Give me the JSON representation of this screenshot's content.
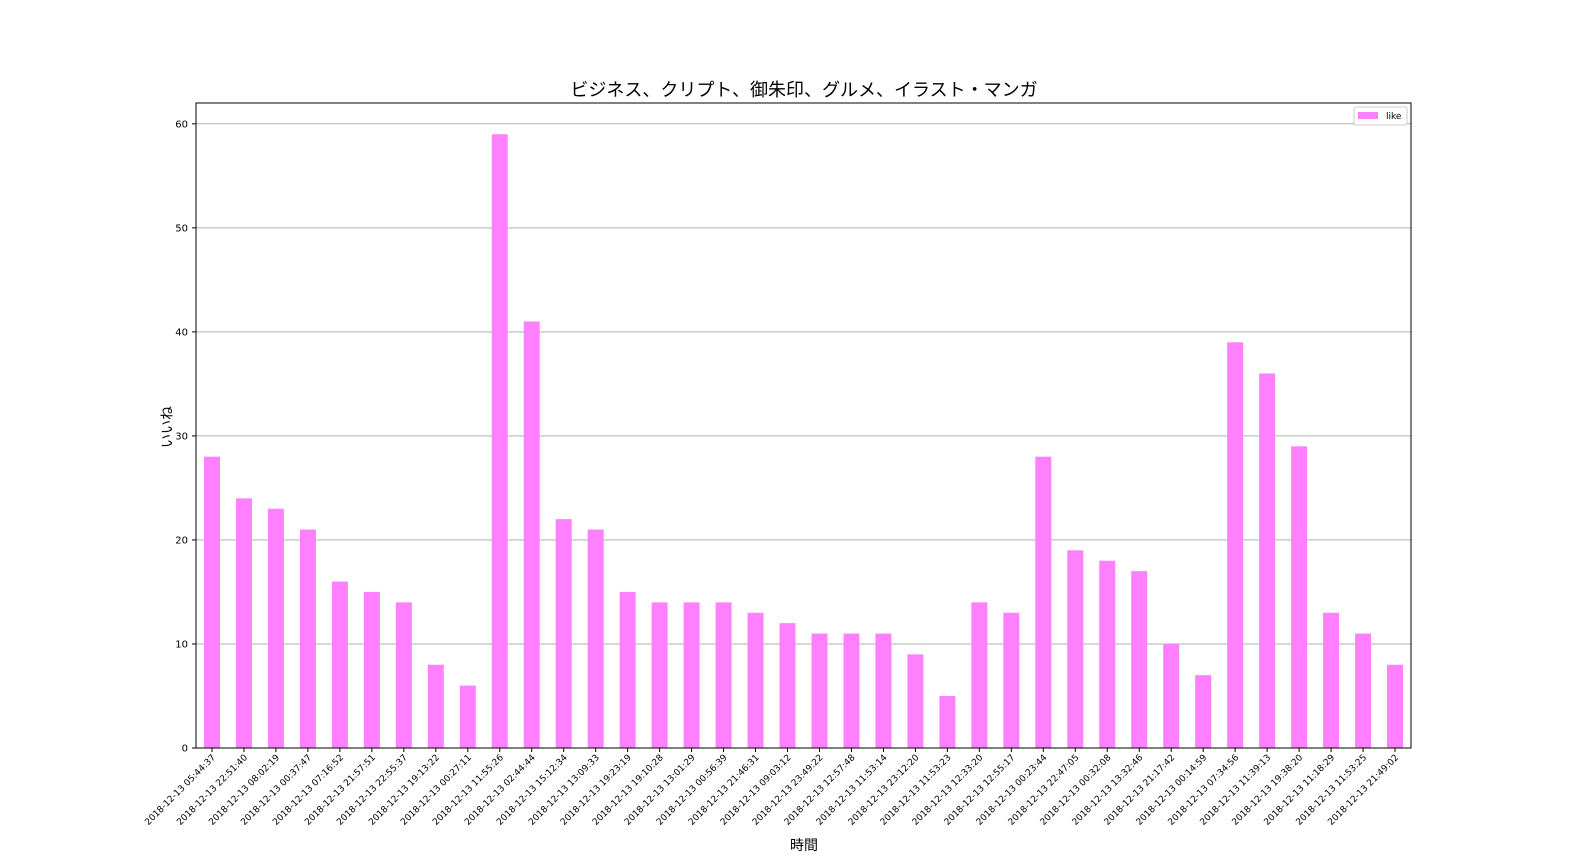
{
  "chart_data": {
    "type": "bar",
    "title": "ビジネス、クリプト、御朱印、グルメ、イラスト・マンガ",
    "xlabel": "時間",
    "ylabel": "いいね",
    "ylim": [
      0,
      62
    ],
    "yticks": [
      0,
      10,
      20,
      30,
      40,
      50,
      60
    ],
    "grid": "horizontal",
    "legend_position": "top-right",
    "bar_color": "#ff80ff",
    "categories": [
      "2018-12-13 05:44:37",
      "2018-12-13 22:51:40",
      "2018-12-13 08:02:19",
      "2018-12-13 00:37:47",
      "2018-12-13 07:16:52",
      "2018-12-13 21:57:51",
      "2018-12-13 22:55:37",
      "2018-12-13 19:13:22",
      "2018-12-13 00:27:11",
      "2018-12-13 11:55:26",
      "2018-12-13 02:44:44",
      "2018-12-13 15:12:34",
      "2018-12-13 13:09:33",
      "2018-12-13 19:23:19",
      "2018-12-13 19:10:28",
      "2018-12-13 13:01:29",
      "2018-12-13 00:56:39",
      "2018-12-13 21:46:31",
      "2018-12-13 09:03:12",
      "2018-12-13 23:49:22",
      "2018-12-13 12:57:48",
      "2018-12-13 11:53:14",
      "2018-12-13 23:12:20",
      "2018-12-13 11:53:23",
      "2018-12-13 12:33:20",
      "2018-12-13 12:55:17",
      "2018-12-13 00:23:44",
      "2018-12-13 22:47:05",
      "2018-12-13 00:32:08",
      "2018-12-13 13:32:46",
      "2018-12-13 21:17:42",
      "2018-12-13 00:14:59",
      "2018-12-13 07:34:56",
      "2018-12-13 11:39:13",
      "2018-12-13 19:38:20",
      "2018-12-13 11:18:29",
      "2018-12-13 11:53:25",
      "2018-12-13 21:49:02"
    ],
    "series": [
      {
        "name": "like",
        "values": [
          28,
          24,
          23,
          21,
          16,
          15,
          14,
          8,
          6,
          59,
          41,
          22,
          21,
          15,
          14,
          14,
          14,
          13,
          12,
          11,
          11,
          11,
          9,
          5,
          14,
          13,
          28,
          19,
          18,
          17,
          10,
          7,
          39,
          36,
          29,
          13,
          11,
          8
        ]
      }
    ]
  }
}
